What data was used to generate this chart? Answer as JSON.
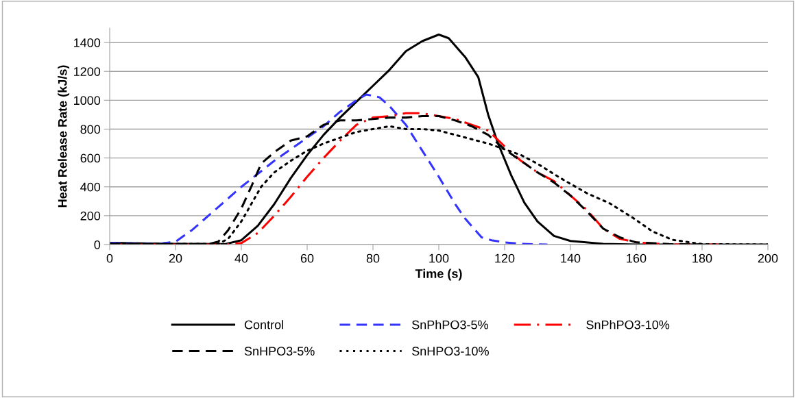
{
  "chart_data": {
    "type": "line",
    "xlabel": "Time (s)",
    "ylabel": "Heat Release Rate (kJ/s)",
    "xlim": [
      0,
      200
    ],
    "xticks": [
      0,
      20,
      40,
      60,
      80,
      100,
      120,
      140,
      160,
      180,
      200
    ],
    "ylim": [
      0,
      1500
    ],
    "yticks": [
      0,
      200,
      400,
      600,
      800,
      1000,
      1200,
      1400
    ],
    "grid": "y",
    "legend": "bottom",
    "marker": "none",
    "series": [
      {
        "name": "Control",
        "color": "#000000",
        "line_style": "solid",
        "x": [
          0,
          20,
          35,
          40,
          45,
          50,
          55,
          60,
          65,
          70,
          75,
          80,
          85,
          90,
          95,
          100,
          103,
          108,
          112,
          115,
          118,
          122,
          126,
          130,
          135,
          140,
          150,
          160,
          200
        ],
        "values": [
          12,
          5,
          3,
          30,
          130,
          280,
          460,
          620,
          760,
          880,
          990,
          1100,
          1210,
          1340,
          1410,
          1455,
          1430,
          1300,
          1160,
          900,
          700,
          480,
          290,
          160,
          60,
          25,
          5,
          0,
          0
        ]
      },
      {
        "name": "SnPhPO3-5%",
        "color": "#3333ff",
        "line_style": "dashed",
        "x": [
          0,
          15,
          20,
          25,
          30,
          35,
          40,
          45,
          50,
          55,
          60,
          65,
          70,
          75,
          78,
          82,
          85,
          90,
          95,
          100,
          105,
          108,
          113,
          116,
          120,
          125,
          133
        ],
        "values": [
          10,
          5,
          20,
          100,
          200,
          300,
          400,
          490,
          580,
          660,
          740,
          820,
          920,
          1000,
          1040,
          1020,
          960,
          830,
          650,
          470,
          280,
          180,
          50,
          30,
          15,
          5,
          0
        ]
      },
      {
        "name": "SnPhPO3-10%",
        "color": "#ff0000",
        "line_style": "dashdot",
        "x": [
          0,
          35,
          40,
          45,
          50,
          55,
          60,
          65,
          70,
          75,
          80,
          85,
          90,
          95,
          100,
          105,
          110,
          115,
          120,
          125,
          130,
          135,
          140,
          145,
          150,
          155,
          160,
          170,
          185
        ],
        "values": [
          0,
          0,
          10,
          80,
          200,
          330,
          470,
          600,
          720,
          830,
          880,
          890,
          910,
          910,
          890,
          870,
          830,
          790,
          680,
          580,
          500,
          440,
          340,
          240,
          110,
          40,
          15,
          0,
          0
        ]
      },
      {
        "name": "SnHPO3-5%",
        "color": "#000000",
        "line_style": "dashed",
        "x": [
          0,
          30,
          33,
          36,
          40,
          43,
          46,
          50,
          55,
          60,
          65,
          70,
          75,
          80,
          85,
          90,
          95,
          100,
          105,
          110,
          115,
          120,
          125,
          130,
          135,
          140,
          145,
          150,
          155,
          160,
          170,
          180
        ],
        "values": [
          5,
          3,
          20,
          100,
          250,
          400,
          560,
          640,
          720,
          750,
          830,
          860,
          860,
          870,
          880,
          880,
          890,
          890,
          860,
          820,
          760,
          660,
          580,
          500,
          430,
          340,
          230,
          110,
          50,
          15,
          3,
          0
        ]
      },
      {
        "name": "SnHPO3-10%",
        "color": "#000000",
        "line_style": "dotted",
        "x": [
          0,
          33,
          36,
          40,
          43,
          46,
          50,
          55,
          60,
          65,
          70,
          75,
          80,
          85,
          90,
          95,
          100,
          105,
          110,
          115,
          120,
          125,
          130,
          137,
          145,
          152,
          159,
          165,
          171,
          180,
          200
        ],
        "values": [
          5,
          5,
          40,
          160,
          280,
          400,
          500,
          580,
          650,
          700,
          740,
          780,
          800,
          820,
          800,
          800,
          790,
          760,
          730,
          700,
          660,
          620,
          560,
          460,
          356,
          285,
          185,
          90,
          33,
          3,
          0
        ]
      }
    ]
  }
}
